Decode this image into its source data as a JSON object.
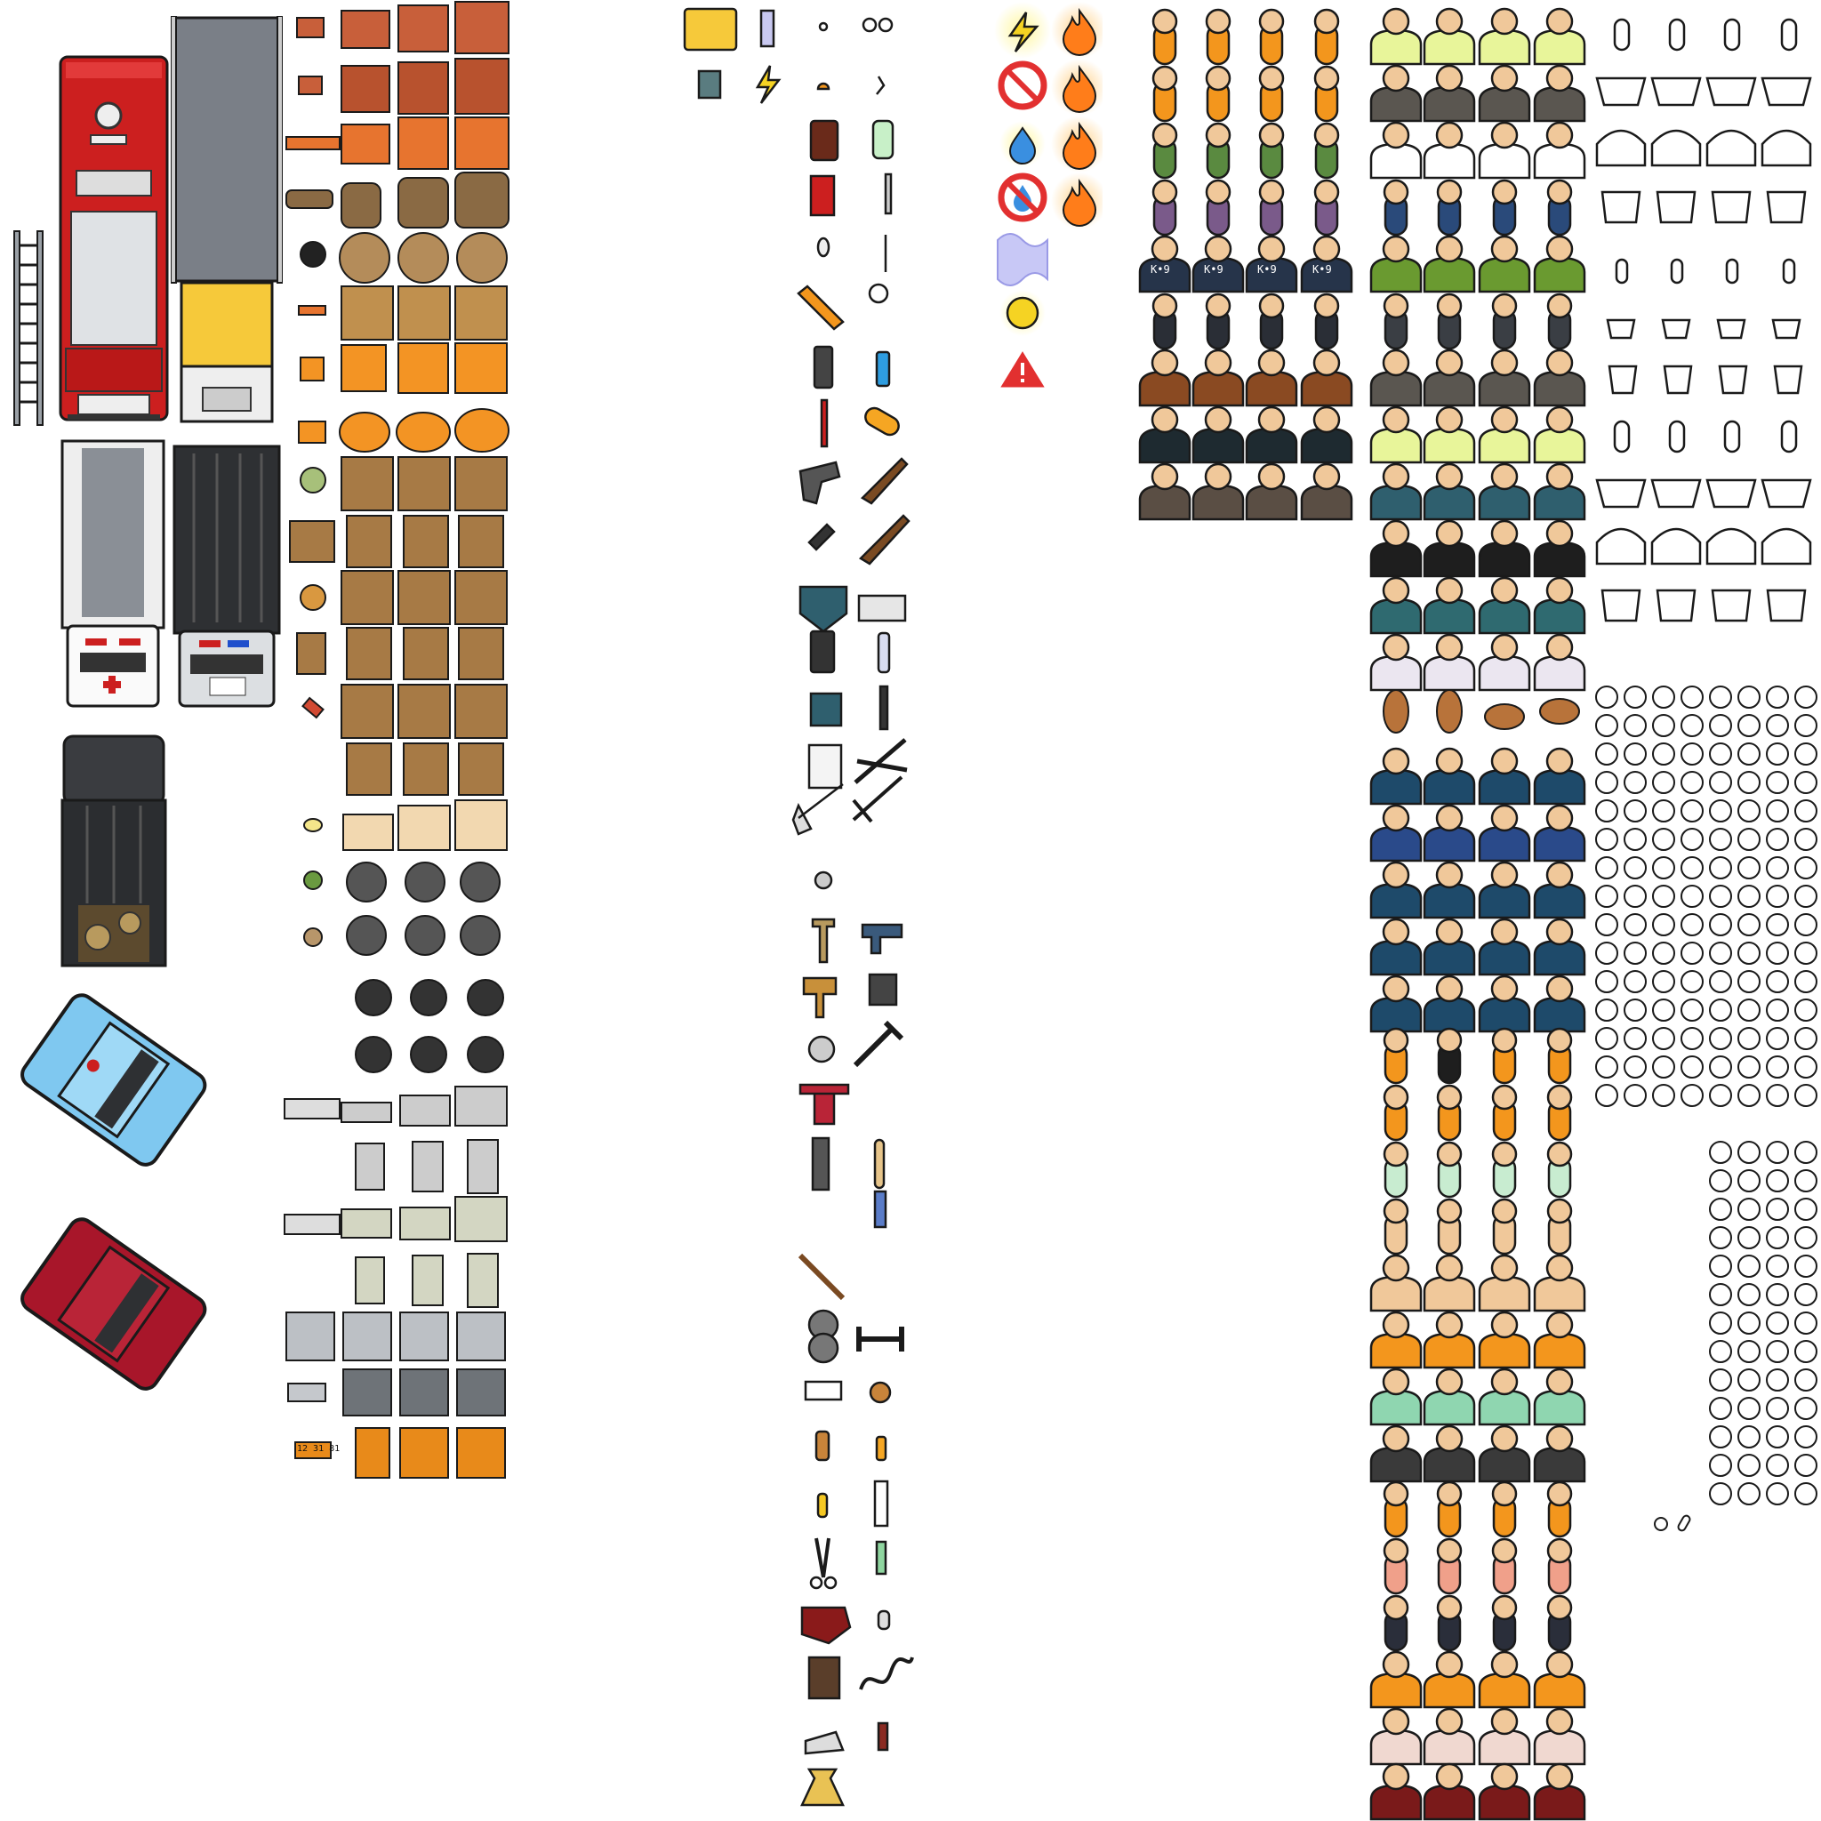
{
  "labels": {
    "k9_badge": "K•9",
    "ticket_digits": "12 31 81"
  },
  "colors": {
    "outline": "#1a1a1a",
    "fire_red": "#cc1f1f",
    "truck_gray": "#7a7f87",
    "taxi_yellow": "#f6c93a",
    "crate_orange": "#e7742f",
    "cardboard": "#a77a45",
    "police_blue": "#7fc8f0",
    "sedan_red": "#a8162a",
    "guard_teal": "#2f5f6e",
    "prisoner_orange": "#f3961d",
    "skin": "#f0c89a",
    "hivis": "#e8f59a",
    "nurse_green": "#8fd6b0",
    "hazard_red": "#e23030",
    "spark_yellow": "#f5d323",
    "water_blue": "#3a8fe0",
    "flame_orange": "#ff7d1a"
  },
  "icons": [
    "fire-truck-icon",
    "ladder-icon",
    "delivery-truck-icon",
    "ambulance-icon",
    "police-van-icon",
    "armored-van-icon",
    "police-car-icon",
    "red-sedan-icon",
    "crate-icon",
    "bricks-icon",
    "planks-icon",
    "log-icon",
    "cable-spool-icon",
    "orange-box-icon",
    "cabbage-box-icon",
    "bread-box-icon",
    "meat-box-icon",
    "egg-tray-icon",
    "cooking-pot-icon",
    "frying-pan-icon",
    "metal-tray-icon",
    "metal-sheet-icon",
    "ticket-icon",
    "desk-icon",
    "pipe-icon",
    "lightning-icon",
    "bottle-icon",
    "knife-icon",
    "spoon-icon",
    "fork-icon",
    "saw-icon",
    "keys-icon",
    "phone-icon",
    "lighter-icon",
    "screwdriver-icon",
    "pill-icon",
    "revolver-icon",
    "shotgun-icon",
    "rifle-icon",
    "vest-icon",
    "radio-icon",
    "baton-icon",
    "clipboard-icon",
    "shears-icon",
    "shovel-icon",
    "rake-icon",
    "hammer-icon",
    "drill-icon",
    "sledgehammer-icon",
    "jackhammer-icon",
    "dumbbell-icon",
    "syringe-icon",
    "scissors-icon",
    "hat-icon",
    "money-bag-icon",
    "status-electric-icon",
    "status-fire-icon",
    "no-entry-icon",
    "water-icon",
    "wave-icon",
    "sun-icon",
    "warning-icon",
    "prisoner-sprite-icon",
    "guard-sprite-icon",
    "worker-sprite-icon",
    "dog-sprite-icon",
    "doctor-sprite-icon",
    "head-sprite-icon",
    "body-outline-icon"
  ]
}
